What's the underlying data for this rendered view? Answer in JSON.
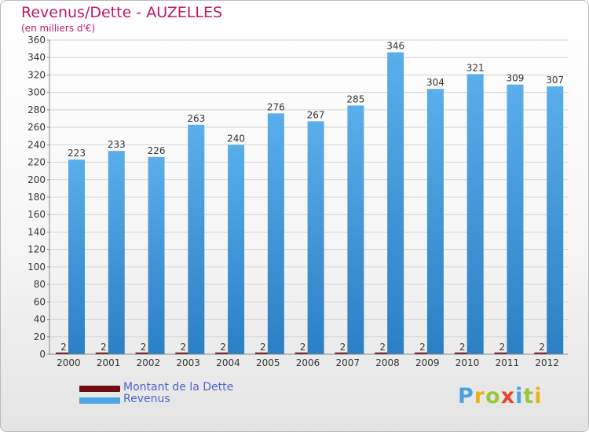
{
  "colors": {
    "title": "#c0185f",
    "debt": "#6e0e12",
    "revenue": "#4ea5e6",
    "revenue_dark": "#2b7fc4",
    "legend_text": "#4d64c8",
    "grid": "#d4d4d4"
  },
  "legend": {
    "debt_label": "Montant de la Dette",
    "revenue_label": "Revenus"
  },
  "logo": {
    "letters": [
      "P",
      "r",
      "o",
      "x",
      "i",
      "t",
      "i"
    ],
    "colors": [
      "#4aa3df",
      "#e8b21a",
      "#9bc53d",
      "#e8462b",
      "#4aa3df",
      "#9bc53d",
      "#e8b21a"
    ]
  },
  "chart_data": {
    "type": "bar",
    "title": "Revenus/Dette - AUZELLES",
    "subtitle": "(en milliers d'€)",
    "xlabel": "",
    "ylabel": "",
    "ylim": [
      0,
      360
    ],
    "yticks": [
      0,
      20,
      40,
      60,
      80,
      100,
      120,
      140,
      160,
      180,
      200,
      220,
      240,
      260,
      280,
      300,
      320,
      340,
      360
    ],
    "grid": true,
    "legend_position": "bottom-left",
    "categories": [
      "2000",
      "2001",
      "2002",
      "2003",
      "2004",
      "2005",
      "2006",
      "2007",
      "2008",
      "2009",
      "2010",
      "2011",
      "2012"
    ],
    "series": [
      {
        "name": "Montant de la Dette",
        "values": [
          2,
          2,
          2,
          2,
          2,
          2,
          2,
          2,
          2,
          2,
          2,
          2,
          2
        ]
      },
      {
        "name": "Revenus",
        "values": [
          223,
          233,
          226,
          263,
          240,
          276,
          267,
          285,
          346,
          304,
          321,
          309,
          307
        ]
      }
    ]
  }
}
